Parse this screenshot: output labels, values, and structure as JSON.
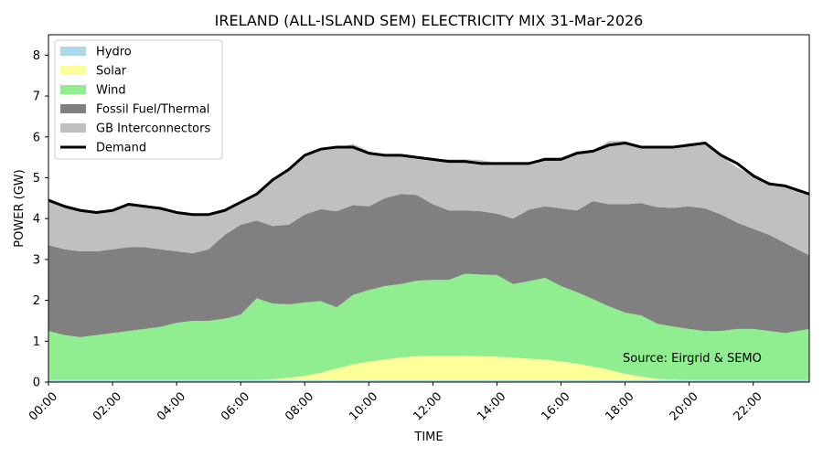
{
  "chart_data": {
    "type": "area",
    "title": "IRELAND (ALL-ISLAND SEM) ELECTRICITY MIX 31-Mar-2026",
    "xlabel": "TIME",
    "ylabel": "POWER (GW)",
    "ylim": [
      0,
      8.5
    ],
    "y_ticks": [
      "0",
      "1",
      "2",
      "3",
      "4",
      "5",
      "6",
      "7",
      "8"
    ],
    "x_ticks": [
      "00:00",
      "02:00",
      "04:00",
      "06:00",
      "08:00",
      "10:00",
      "12:00",
      "14:00",
      "16:00",
      "18:00",
      "20:00",
      "22:00"
    ],
    "x_hours": [
      0,
      0.5,
      1,
      1.5,
      2,
      2.5,
      3,
      3.5,
      4,
      4.5,
      5,
      5.5,
      6,
      6.5,
      7,
      7.5,
      8,
      8.5,
      9,
      9.5,
      10,
      10.5,
      11,
      11.5,
      12,
      12.5,
      13,
      13.5,
      14,
      14.5,
      15,
      15.5,
      16,
      16.5,
      17,
      17.5,
      18,
      18.5,
      19,
      19.5,
      20,
      20.5,
      21,
      21.5,
      22,
      22.5,
      23,
      23.75
    ],
    "grid": false,
    "legend_position": "top-left",
    "series": [
      {
        "name": "Hydro",
        "type": "area",
        "color": "#add8e6",
        "values": [
          0.05,
          0.05,
          0.05,
          0.05,
          0.05,
          0.05,
          0.05,
          0.05,
          0.05,
          0.05,
          0.05,
          0.05,
          0.05,
          0.05,
          0.05,
          0.05,
          0.05,
          0.05,
          0.05,
          0.05,
          0.05,
          0.05,
          0.05,
          0.05,
          0.05,
          0.05,
          0.05,
          0.05,
          0.05,
          0.05,
          0.05,
          0.05,
          0.05,
          0.05,
          0.05,
          0.05,
          0.05,
          0.05,
          0.05,
          0.05,
          0.05,
          0.05,
          0.05,
          0.05,
          0.05,
          0.05,
          0.05,
          0.05
        ]
      },
      {
        "name": "Solar",
        "type": "area",
        "color": "#ffff99",
        "values": [
          0,
          0,
          0,
          0,
          0,
          0,
          0,
          0,
          0,
          0,
          0,
          0,
          0,
          0,
          0.02,
          0.05,
          0.1,
          0.18,
          0.28,
          0.38,
          0.45,
          0.5,
          0.55,
          0.58,
          0.6,
          0.6,
          0.6,
          0.58,
          0.57,
          0.55,
          0.52,
          0.5,
          0.45,
          0.4,
          0.33,
          0.25,
          0.15,
          0.08,
          0.03,
          0.01,
          0,
          0,
          0,
          0,
          0,
          0,
          0,
          0
        ]
      },
      {
        "name": "Wind",
        "type": "area",
        "color": "#90ee90",
        "values": [
          1.2,
          1.1,
          1.05,
          1.1,
          1.15,
          1.2,
          1.25,
          1.3,
          1.4,
          1.45,
          1.45,
          1.5,
          1.6,
          2.0,
          1.85,
          1.8,
          1.8,
          1.75,
          1.5,
          1.7,
          1.75,
          1.8,
          1.8,
          1.85,
          1.85,
          1.85,
          2.0,
          2.0,
          2.0,
          1.8,
          1.9,
          2.0,
          1.85,
          1.75,
          1.65,
          1.55,
          1.5,
          1.5,
          1.35,
          1.3,
          1.25,
          1.2,
          1.2,
          1.25,
          1.25,
          1.2,
          1.15,
          1.25
        ]
      },
      {
        "name": "Fossil Fuel/Thermal",
        "type": "area",
        "color": "#808080",
        "values": [
          2.1,
          2.1,
          2.1,
          2.05,
          2.05,
          2.05,
          2.0,
          1.9,
          1.75,
          1.65,
          1.75,
          2.05,
          2.2,
          1.9,
          1.9,
          1.95,
          2.15,
          2.25,
          2.35,
          2.2,
          2.05,
          2.15,
          2.2,
          2.1,
          1.85,
          1.7,
          1.55,
          1.55,
          1.5,
          1.6,
          1.75,
          1.75,
          1.9,
          2.0,
          2.4,
          2.5,
          2.65,
          2.75,
          2.85,
          2.9,
          3.0,
          3.0,
          2.85,
          2.6,
          2.45,
          2.35,
          2.2,
          1.8
        ]
      },
      {
        "name": "GB Interconnectors",
        "type": "area",
        "color": "#c0c0c0",
        "values": [
          1.1,
          1.05,
          1.0,
          0.95,
          0.95,
          1.05,
          1.0,
          1.0,
          0.95,
          0.95,
          0.85,
          0.6,
          0.55,
          0.65,
          1.15,
          1.35,
          1.45,
          1.5,
          1.55,
          1.5,
          1.35,
          1.05,
          0.95,
          0.95,
          1.1,
          1.25,
          1.25,
          1.25,
          1.25,
          1.35,
          1.15,
          1.2,
          1.25,
          1.45,
          1.25,
          1.55,
          1.55,
          1.4,
          1.45,
          1.5,
          1.55,
          1.6,
          1.45,
          1.35,
          1.3,
          1.3,
          1.4,
          1.5
        ]
      },
      {
        "name": "Demand",
        "type": "line",
        "color": "#000000",
        "values": [
          4.45,
          4.3,
          4.2,
          4.15,
          4.2,
          4.35,
          4.3,
          4.25,
          4.15,
          4.1,
          4.1,
          4.2,
          4.4,
          4.6,
          4.95,
          5.2,
          5.55,
          5.7,
          5.75,
          5.75,
          5.6,
          5.55,
          5.55,
          5.5,
          5.45,
          5.4,
          5.4,
          5.35,
          5.35,
          5.35,
          5.35,
          5.45,
          5.45,
          5.6,
          5.65,
          5.8,
          5.85,
          5.75,
          5.75,
          5.75,
          5.8,
          5.85,
          5.55,
          5.35,
          5.05,
          4.85,
          4.8,
          4.6
        ]
      }
    ],
    "annotation": "Source: Eirgrid & SEMO"
  }
}
